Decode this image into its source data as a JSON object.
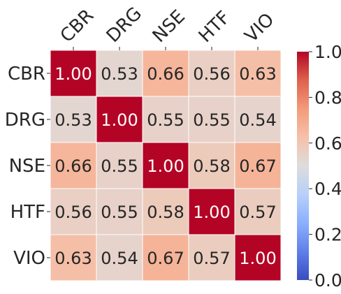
{
  "chart_data": {
    "type": "heatmap",
    "title": "",
    "xlabel": "",
    "ylabel": "",
    "x_categories": [
      "CBR",
      "DRG",
      "NSE",
      "HTF",
      "VIO"
    ],
    "y_categories": [
      "CBR",
      "DRG",
      "NSE",
      "HTF",
      "VIO"
    ],
    "values": [
      [
        1.0,
        0.53,
        0.66,
        0.56,
        0.63
      ],
      [
        0.53,
        1.0,
        0.55,
        0.55,
        0.54
      ],
      [
        0.66,
        0.55,
        1.0,
        0.58,
        0.67
      ],
      [
        0.56,
        0.55,
        0.58,
        1.0,
        0.57
      ],
      [
        0.63,
        0.54,
        0.67,
        0.57,
        1.0
      ]
    ],
    "cell_labels": [
      [
        "1.00",
        "0.53",
        "0.66",
        "0.56",
        "0.63"
      ],
      [
        "0.53",
        "1.00",
        "0.55",
        "0.55",
        "0.54"
      ],
      [
        "0.66",
        "0.55",
        "1.00",
        "0.58",
        "0.67"
      ],
      [
        "0.56",
        "0.55",
        "0.58",
        "1.00",
        "0.57"
      ],
      [
        "0.63",
        "0.54",
        "0.67",
        "0.57",
        "1.00"
      ]
    ],
    "colormap": "coolwarm",
    "vmin": 0.0,
    "vmax": 1.0,
    "colorbar_ticks": [
      "0.0",
      "0.2",
      "0.4",
      "0.6",
      "0.8",
      "1.0"
    ],
    "colorbar_tick_values": [
      0.0,
      0.2,
      0.4,
      0.6,
      0.8,
      1.0
    ],
    "colors": {
      "low": "#3b4cc0",
      "mid": "#dddcdc",
      "high": "#b40426",
      "cell_border": "#ffffff",
      "text_dark": "#262626",
      "text_light": "#ffffff"
    }
  }
}
